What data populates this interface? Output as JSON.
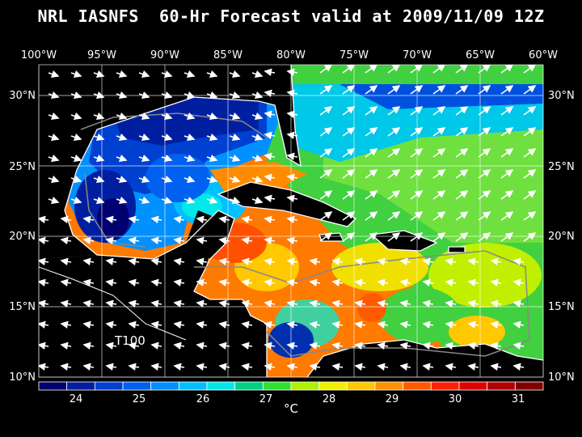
{
  "title": "NRL IASNFS  60-Hr Forecast valid at 2009/11/09 12Z",
  "lon_labels": [
    "100°W",
    "95°W",
    "90°W",
    "85°W",
    "80°W",
    "75°W",
    "70°W",
    "65°W",
    "60°W"
  ],
  "lat_labels": [
    "30°N",
    "25°N",
    "20°N",
    "15°N",
    "10°N"
  ],
  "storm_label": "T100",
  "colorbar": {
    "ticks": [
      "24",
      "25",
      "26",
      "27",
      "28",
      "29",
      "30",
      "31"
    ],
    "unit": "°C",
    "colors": [
      "#00006e",
      "#001fa0",
      "#0040d0",
      "#0060f0",
      "#0090ff",
      "#00c0ff",
      "#00e8e8",
      "#00d080",
      "#30e030",
      "#b0f000",
      "#f0f000",
      "#ffc800",
      "#ff9000",
      "#ff5a00",
      "#ff2000",
      "#e00000",
      "#b00000",
      "#800000"
    ]
  },
  "colors": {
    "background": "#000000",
    "land": "#000000",
    "coastline": "#ffffff",
    "grid": "#ffffff"
  }
}
